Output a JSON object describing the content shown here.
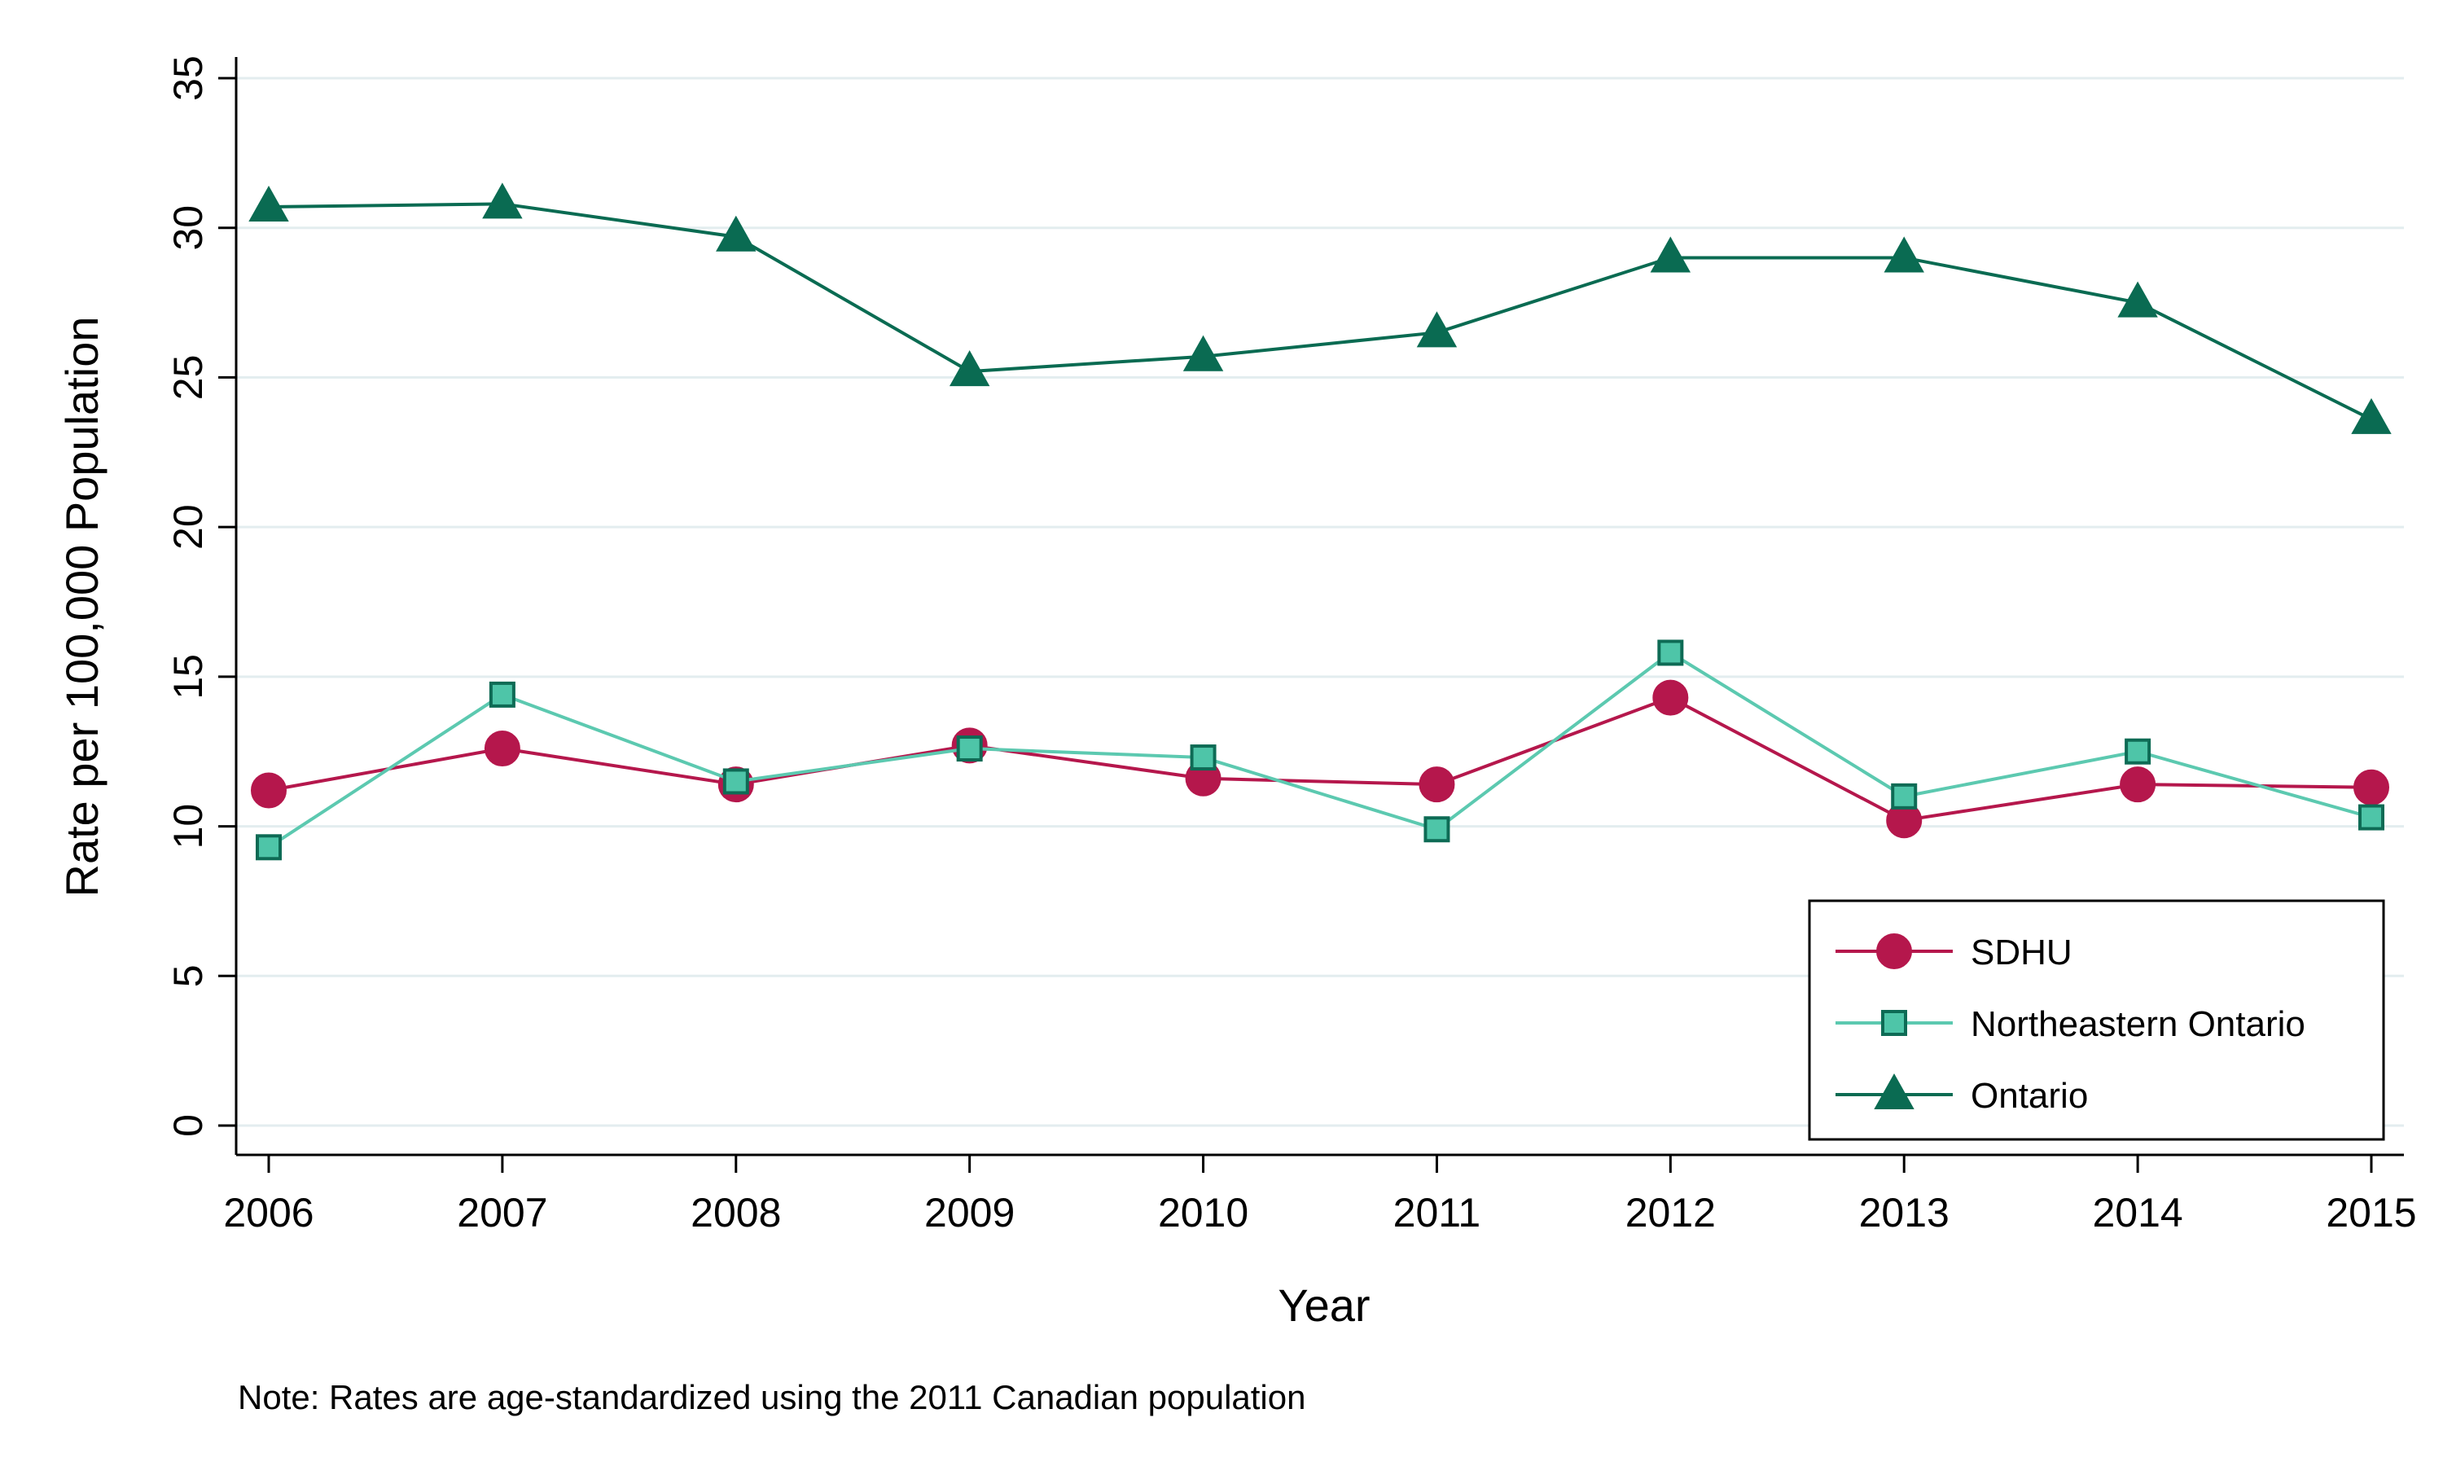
{
  "chart_data": {
    "type": "line",
    "x": [
      2006,
      2007,
      2008,
      2009,
      2010,
      2011,
      2012,
      2013,
      2014,
      2015
    ],
    "x_tick_labels": [
      "2006",
      "2007",
      "2008",
      "2009",
      "2010",
      "2011",
      "2012",
      "2013",
      "2014",
      "2015"
    ],
    "y_tick_labels": [
      "0",
      "5",
      "10",
      "15",
      "20",
      "25",
      "30",
      "35"
    ],
    "y_ticks": [
      0,
      5,
      10,
      15,
      20,
      25,
      30,
      35
    ],
    "ylim": [
      0,
      35
    ],
    "xlabel": "Year",
    "ylabel": "Rate per 100,000 Population",
    "note": "Note: Rates are age-standardized using the 2011 Canadian population",
    "grid": true,
    "legend_position": "bottom-right",
    "series": [
      {
        "name": "SDHU",
        "marker": "circle",
        "color": "#B5174C",
        "values": [
          11.2,
          12.6,
          11.4,
          12.7,
          11.6,
          11.4,
          14.3,
          10.2,
          11.4,
          11.3
        ]
      },
      {
        "name": "Northeastern Ontario",
        "marker": "square",
        "color": "#4EC5A8",
        "line_color": "#5CC9B0",
        "stroke_color": "#0E6B55",
        "values": [
          9.3,
          14.4,
          11.5,
          12.6,
          12.3,
          9.9,
          15.8,
          11.0,
          12.5,
          10.3
        ]
      },
      {
        "name": "Ontario",
        "marker": "triangle",
        "color": "#0A6B52",
        "values": [
          30.7,
          30.8,
          29.7,
          25.2,
          25.7,
          26.5,
          29.0,
          29.0,
          27.5,
          23.6
        ]
      }
    ]
  }
}
